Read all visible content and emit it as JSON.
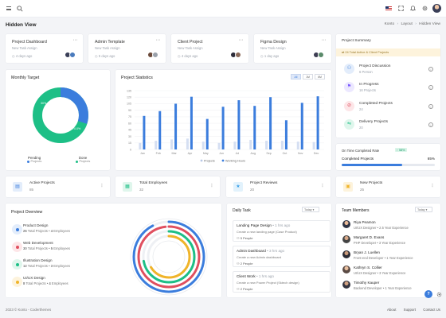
{
  "header": {
    "page_title": "Hidden View",
    "breadcrumb": [
      "Konto",
      "Layout",
      "Hidden View"
    ],
    "breadcrumb_sep": "›"
  },
  "project_cards": [
    {
      "title": "Project Dashboard",
      "subtitle": "New Task Assign",
      "date": "4 days ago"
    },
    {
      "title": "Admin Template",
      "subtitle": "New Task Assign",
      "date": "5 days ago"
    },
    {
      "title": "Client Project",
      "subtitle": "New Task Assign",
      "date": "4 days ago"
    },
    {
      "title": "Figma Design",
      "subtitle": "New Task Assign",
      "date": "1 day ago"
    }
  ],
  "project_target": {
    "title": "Monthly Target",
    "pending_pct": "30%",
    "done_pct": "70.0%",
    "legend": [
      {
        "label": "Pending",
        "sub": "Projects",
        "color": "#3b7ddd"
      },
      {
        "label": "Done",
        "sub": "Projects",
        "color": "#1dbf86"
      }
    ],
    "chart_data": {
      "type": "pie",
      "categories": [
        "Pending",
        "Done"
      ],
      "values": [
        30,
        70
      ]
    }
  },
  "project_statistics": {
    "title": "Project Statistics",
    "tabs": [
      "All",
      "1M",
      "6M"
    ],
    "chart_data": {
      "type": "bar",
      "categories": [
        "Jan",
        "Feb",
        "Mar",
        "Apr",
        "May",
        "Jun",
        "Jul",
        "Aug",
        "Sep",
        "Oct",
        "Nov",
        "Dec"
      ],
      "series": [
        {
          "name": "Projects",
          "values": [
            15,
            20,
            23,
            25,
            18,
            15,
            18,
            22,
            20,
            20,
            18,
            17
          ],
          "color": "#d5dff2"
        },
        {
          "name": "Working Hours",
          "values": [
            77,
            88,
            105,
            121,
            70,
            98,
            113,
            100,
            120,
            67,
            107,
            122
          ],
          "color": "#3b7ddd"
        }
      ],
      "yticks": [
        0,
        15,
        30,
        45,
        60,
        75,
        90,
        105,
        120,
        135
      ],
      "ylim": [
        0,
        135
      ]
    }
  },
  "project_summary": {
    "title": "Project Summary",
    "alert": "24 Total Active & Client Projects",
    "items": [
      {
        "title": "Project Discussion",
        "value": "6 Person",
        "color": "#3b7ddd",
        "bg": "#e3edfb"
      },
      {
        "title": "In Progress",
        "value": "16 Projects",
        "color": "#7c5cff",
        "bg": "#ece8ff"
      },
      {
        "title": "Completed Projects",
        "value": "24",
        "color": "#e04f5f",
        "bg": "#fde6e8"
      },
      {
        "title": "Delivery Projects",
        "value": "20",
        "color": "#1dbf86",
        "bg": "#dff6ec"
      }
    ]
  },
  "on_time": {
    "title": "On Time Completed Rate",
    "badge": "↑ 58%",
    "label": "Completed Projects",
    "value": "65%",
    "fraction": 0.65
  },
  "stats": [
    {
      "title": "Active Projects",
      "value": "85",
      "color": "#3b7ddd",
      "bg": "#e3edfb"
    },
    {
      "title": "Total Employees",
      "value": "32",
      "color": "#1dbf86",
      "bg": "#dff6ec"
    },
    {
      "title": "Project Reviews",
      "value": "20",
      "color": "#3aa0e8",
      "bg": "#e2f2fc"
    },
    {
      "title": "New Projects",
      "value": "25",
      "color": "#f0b429",
      "bg": "#fdf3dc"
    }
  ],
  "project_overview": {
    "title": "Project Overview",
    "items": [
      {
        "name": "Product Design",
        "total": "26",
        "employees": "4",
        "color": "#3b7ddd"
      },
      {
        "name": "Web Development",
        "total": "30",
        "employees": "5",
        "color": "#e04f5f"
      },
      {
        "name": "Illustration Design",
        "total": "12",
        "employees": "3",
        "color": "#1dbf86"
      },
      {
        "name": "UI/UX Design",
        "total": "8",
        "employees": "4",
        "color": "#f0b429"
      }
    ],
    "total_label": "Total Projects",
    "employees_label": "Employees",
    "bullet": "•",
    "chart_data": {
      "type": "pie",
      "categories": [
        "Product Design",
        "Web Development",
        "Illustration Design",
        "UI/UX Design"
      ],
      "values": [
        26,
        30,
        12,
        8
      ]
    }
  },
  "daily_task": {
    "title": "Daily Task",
    "filter": "Today",
    "items": [
      {
        "title": "Landing Page Design",
        "time": "1 hrs ago",
        "desc": "Create a new landing page (Case Product)",
        "people": "5 People"
      },
      {
        "title": "Admin Dashboard",
        "time": "3 hrs ago",
        "desc": "Create a new Admin dashboard",
        "people": "2 People"
      },
      {
        "title": "Client Work",
        "time": "1 hrs ago",
        "desc": "Create a new Power Project (Sktech design)",
        "people": "2 People"
      }
    ],
    "bullet": "•"
  },
  "team_members": {
    "title": "Team Members",
    "filter": "Today",
    "members": [
      {
        "name": "Riya Peamon",
        "role": "UI/UX Designer",
        "exp": "2.5 Year Experience"
      },
      {
        "name": "Margaret D. Evans",
        "role": "PHP Developer",
        "exp": "3 Year Experience"
      },
      {
        "name": "Bryan J. Luellen",
        "role": "Front-end Developer",
        "exp": "1 Year Experience"
      },
      {
        "name": "Kathryn S. Collier",
        "role": "UI/UX Designer",
        "exp": "3 Year Experience"
      },
      {
        "name": "Timothy Kauper",
        "role": "Backend Developer",
        "exp": "1 Year Experience"
      }
    ],
    "bullet": "•"
  },
  "footer": {
    "copyright": "2023 © Konto - Coderthemes",
    "links": [
      "About",
      "Support",
      "Contact Us"
    ]
  },
  "colors": {
    "accent": "#3b7ddd",
    "success": "#1dbf86",
    "danger": "#e04f5f",
    "warning": "#f0b429"
  }
}
